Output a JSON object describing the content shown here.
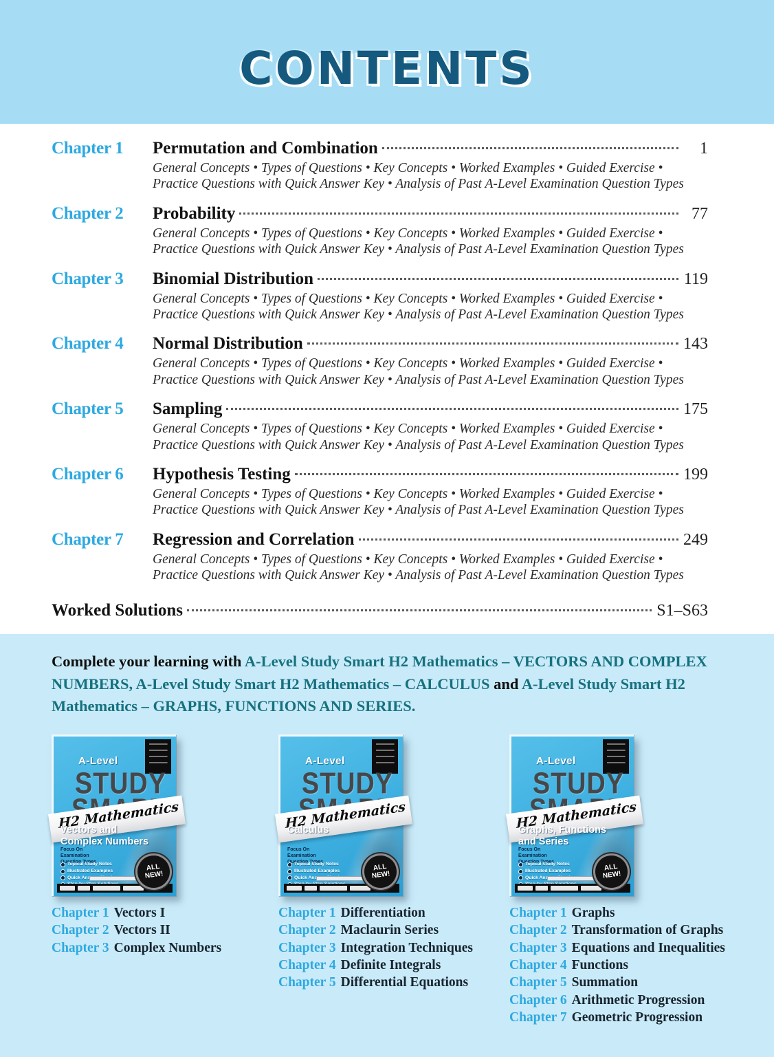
{
  "banner": {
    "title": "CONTENTS"
  },
  "toc": {
    "common_description": "General Concepts • Types of Questions • Key Concepts • Worked Examples • Guided Exercise • Practice Questions with Quick Answer Key • Analysis of Past A-Level Examination Question Types",
    "entries": [
      {
        "label": "Chapter 1",
        "title": "Permutation and Combination",
        "page": "1"
      },
      {
        "label": "Chapter 2",
        "title": "Probability",
        "page": "77"
      },
      {
        "label": "Chapter 3",
        "title": "Binomial Distribution",
        "page": "119"
      },
      {
        "label": "Chapter 4",
        "title": "Normal Distribution",
        "page": "143"
      },
      {
        "label": "Chapter 5",
        "title": "Sampling",
        "page": "175"
      },
      {
        "label": "Chapter 6",
        "title": "Hypothesis Testing",
        "page": "199"
      },
      {
        "label": "Chapter 7",
        "title": "Regression and Correlation",
        "page": "249"
      }
    ],
    "worked_solutions": {
      "title": "Worked Solutions",
      "page": "S1–S63"
    }
  },
  "promo": {
    "segments": [
      {
        "text": "Complete your learning with ",
        "tone": "dark"
      },
      {
        "text": "A-Level Study Smart H2 Mathematics – VECTORS AND COMPLEX NUMBERS, ",
        "tone": "teal"
      },
      {
        "text": "A-Level Study Smart H2 Mathematics – CALCULUS",
        "tone": "teal"
      },
      {
        "text": " and ",
        "tone": "dark"
      },
      {
        "text": "A-Level Study Smart H2 Mathematics – GRAPHS, FUNCTIONS AND SERIES.",
        "tone": "teal"
      }
    ]
  },
  "books": [
    {
      "series": "A-Level",
      "brand_line1": "STUDY",
      "brand_line2": "SMART",
      "ribbon": "H2 Mathematics",
      "subtitle": "Vectors and Complex Numbers",
      "tagline": "Focus On Examination Question Types",
      "features": [
        "Topical Study Notes",
        "Illustrated Examples",
        "Quick Answer Check",
        "Step-by-Step Solutions"
      ],
      "badge_line1": "ALL",
      "badge_line2": "NEW!",
      "chapters": [
        {
          "label": "Chapter 1",
          "title": "Vectors I"
        },
        {
          "label": "Chapter 2",
          "title": "Vectors II"
        },
        {
          "label": "Chapter 3",
          "title": "Complex Numbers"
        }
      ]
    },
    {
      "series": "A-Level",
      "brand_line1": "STUDY",
      "brand_line2": "SMART",
      "ribbon": "H2 Mathematics",
      "subtitle": "Calculus",
      "tagline": "Focus On Examination Question Types",
      "features": [
        "Topical Study Notes",
        "Illustrated Examples",
        "Quick Answer Check",
        "Step-by-Step Solutions"
      ],
      "badge_line1": "ALL",
      "badge_line2": "NEW!",
      "chapters": [
        {
          "label": "Chapter 1",
          "title": "Differentiation"
        },
        {
          "label": "Chapter 2",
          "title": "Maclaurin Series"
        },
        {
          "label": "Chapter 3",
          "title": "Integration Techniques"
        },
        {
          "label": "Chapter 4",
          "title": "Definite Integrals"
        },
        {
          "label": "Chapter 5",
          "title": "Differential Equations"
        }
      ]
    },
    {
      "series": "A-Level",
      "brand_line1": "STUDY",
      "brand_line2": "SMART",
      "ribbon": "H2 Mathematics",
      "subtitle": "Graphs, Functions and Series",
      "tagline": "Focus On Examination Question Types",
      "features": [
        "Topical Study Notes",
        "Illustrated Examples",
        "Quick Answer Check",
        "Step-by-Step Solutions"
      ],
      "badge_line1": "ALL",
      "badge_line2": "NEW!",
      "chapters": [
        {
          "label": "Chapter 1",
          "title": "Graphs"
        },
        {
          "label": "Chapter 2",
          "title": "Transformation of Graphs"
        },
        {
          "label": "Chapter 3",
          "title": "Equations and Inequalities"
        },
        {
          "label": "Chapter 4",
          "title": "Functions"
        },
        {
          "label": "Chapter 5",
          "title": "Summation"
        },
        {
          "label": "Chapter 6",
          "title": "Arithmetic Progression"
        },
        {
          "label": "Chapter 7",
          "title": "Geometric Progression"
        }
      ]
    }
  ],
  "colors": {
    "banner_bg": "#a6dcf4",
    "band_bg": "#c9eaf8",
    "heading_blue": "#15597e",
    "chapter_label_blue": "#2ea9e0",
    "promo_teal": "#16717f",
    "cover_blue": "#41b2e2"
  }
}
